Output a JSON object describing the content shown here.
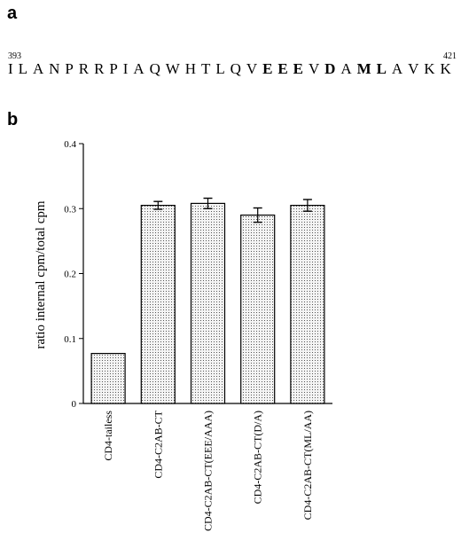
{
  "panel_a": {
    "label": "a",
    "start": "393",
    "end": "421",
    "residues": [
      {
        "r": "I",
        "b": false
      },
      {
        "r": "L",
        "b": false
      },
      {
        "r": "A",
        "b": false
      },
      {
        "r": "N",
        "b": false
      },
      {
        "r": "P",
        "b": false
      },
      {
        "r": "R",
        "b": false
      },
      {
        "r": "R",
        "b": false
      },
      {
        "r": "P",
        "b": false
      },
      {
        "r": "I",
        "b": false
      },
      {
        "r": "A",
        "b": false
      },
      {
        "r": "Q",
        "b": false
      },
      {
        "r": "W",
        "b": false
      },
      {
        "r": "H",
        "b": false
      },
      {
        "r": "T",
        "b": false
      },
      {
        "r": "L",
        "b": false
      },
      {
        "r": "Q",
        "b": false
      },
      {
        "r": "V",
        "b": false
      },
      {
        "r": "E",
        "b": true
      },
      {
        "r": "E",
        "b": true
      },
      {
        "r": "E",
        "b": true
      },
      {
        "r": "V",
        "b": false
      },
      {
        "r": "D",
        "b": true
      },
      {
        "r": "A",
        "b": false
      },
      {
        "r": "M",
        "b": true
      },
      {
        "r": "L",
        "b": true
      },
      {
        "r": "A",
        "b": false
      },
      {
        "r": "V",
        "b": false
      },
      {
        "r": "K",
        "b": false
      },
      {
        "r": "K",
        "b": false
      }
    ]
  },
  "panel_b": {
    "label": "b"
  },
  "chart_data": {
    "type": "bar",
    "ylabel": "ratio internal cpm/total cpm",
    "ylim": [
      0,
      0.4
    ],
    "yticks": [
      "0",
      "0.1",
      "0.2",
      "0.3",
      "0.4"
    ],
    "categories": [
      "CD4-tailess",
      "CD4-C2AB-CT",
      "CD4-C2AB-CT(EEE/AAA)",
      "CD4-C2AB-CT(D/A)",
      "CD4-C2AB-CT(ML/AA)"
    ],
    "values": [
      0.077,
      0.305,
      0.308,
      0.29,
      0.305
    ],
    "errors": [
      0,
      0.006,
      0.008,
      0.011,
      0.009
    ],
    "bar_fill": "dotted-grey"
  }
}
